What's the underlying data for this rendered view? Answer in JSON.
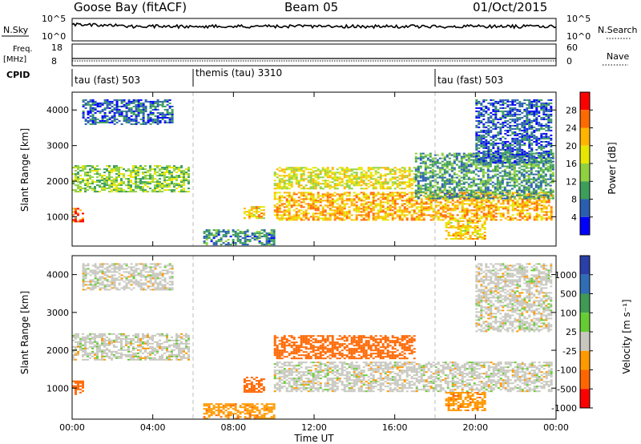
{
  "header": {
    "station": "Goose Bay (fitACF)",
    "beam": "Beam 05",
    "date": "01/Oct/2015"
  },
  "top_panels": {
    "nsky_label": "N.Sky",
    "nsky_ticks": [
      "10^5",
      "10^0"
    ],
    "nsearch_label": "N.Search",
    "nsearch_ticks": [
      "10^5",
      "10^0"
    ],
    "freq_label_line1": "Freq.",
    "freq_label_line2": "[MHz]",
    "freq_ticks": [
      "18",
      "8"
    ],
    "nave_label": "Nave",
    "nave_ticks": [
      "60",
      "0"
    ],
    "cpid_label": "CPID",
    "cpid_segments": [
      {
        "label": "tau (fast) 503",
        "start_hour": 0
      },
      {
        "label": "themis (tau) 3310",
        "start_hour": 6
      },
      {
        "label": "tau (fast) 503",
        "start_hour": 18
      }
    ]
  },
  "chart_data": [
    {
      "type": "heatmap",
      "panel": "power",
      "ylabel": "Slant Range [km]",
      "yticks": [
        "4000",
        "3000",
        "2000",
        "1000"
      ],
      "ylim": [
        180,
        4500
      ],
      "xlim": [
        0,
        24
      ],
      "colorbar_label": "Power [dB]",
      "colorbar_ticks": [
        "28",
        "24",
        "20",
        "16",
        "12",
        "8",
        "4"
      ],
      "colorbar_colors": [
        "#ff0000",
        "#ff6a00",
        "#ffb400",
        "#e6e600",
        "#8fd13f",
        "#3c9e5a",
        "#2a5fb0",
        "#0000ff"
      ],
      "regions": [
        {
          "t0": 0.0,
          "t1": 5.8,
          "r0": 1700,
          "r1": 2450,
          "value": 14
        },
        {
          "t0": 0.0,
          "t1": 0.5,
          "r0": 850,
          "r1": 1250,
          "value": 26
        },
        {
          "t0": 0.5,
          "t1": 5.0,
          "r0": 3600,
          "r1": 4300,
          "value": 6
        },
        {
          "t0": 6.5,
          "t1": 10.0,
          "r0": 200,
          "r1": 650,
          "value": 8
        },
        {
          "t0": 8.5,
          "t1": 9.5,
          "r0": 950,
          "r1": 1300,
          "value": 20
        },
        {
          "t0": 10.0,
          "t1": 23.8,
          "r0": 900,
          "r1": 1700,
          "value": 22
        },
        {
          "t0": 10.0,
          "t1": 17.0,
          "r0": 1800,
          "r1": 2400,
          "value": 18
        },
        {
          "t0": 17.0,
          "t1": 23.8,
          "r0": 1500,
          "r1": 2800,
          "value": 10
        },
        {
          "t0": 18.5,
          "t1": 20.5,
          "r0": 400,
          "r1": 900,
          "value": 20
        },
        {
          "t0": 20.0,
          "t1": 23.8,
          "r0": 2500,
          "r1": 4300,
          "value": 6
        }
      ]
    },
    {
      "type": "heatmap",
      "panel": "velocity",
      "ylabel": "Slant Range [km]",
      "yticks": [
        "4000",
        "3000",
        "2000",
        "1000"
      ],
      "ylim": [
        180,
        4500
      ],
      "xlim": [
        0,
        24
      ],
      "xlabel": "Time UT",
      "xticks": [
        "00:00",
        "04:00",
        "08:00",
        "12:00",
        "16:00",
        "20:00",
        "00:00"
      ],
      "colorbar_label": "Velocity [m s⁻¹]",
      "colorbar_ticks": [
        "1000",
        "500",
        "100",
        "25",
        "-25",
        "-100",
        "-500",
        "-1000"
      ],
      "colorbar_colors": [
        "#2a3fa8",
        "#2f6db5",
        "#3f9a55",
        "#66cc33",
        "#c8c8c0",
        "#ff9900",
        "#ff6600",
        "#ff0000"
      ],
      "regions": [
        {
          "t0": 0.0,
          "t1": 5.8,
          "r0": 1750,
          "r1": 2450,
          "value": 0
        },
        {
          "t0": 0.0,
          "t1": 0.5,
          "r0": 850,
          "r1": 1200,
          "value": -300
        },
        {
          "t0": 0.5,
          "t1": 5.0,
          "r0": 3600,
          "r1": 4300,
          "value": 0
        },
        {
          "t0": 6.5,
          "t1": 10.0,
          "r0": 200,
          "r1": 600,
          "value": -80
        },
        {
          "t0": 8.5,
          "t1": 9.5,
          "r0": 900,
          "r1": 1300,
          "value": -150
        },
        {
          "t0": 10.0,
          "t1": 23.8,
          "r0": 900,
          "r1": 1700,
          "value": 0
        },
        {
          "t0": 10.0,
          "t1": 17.0,
          "r0": 1800,
          "r1": 2400,
          "value": -300
        },
        {
          "t0": 18.5,
          "t1": 20.5,
          "r0": 400,
          "r1": 900,
          "value": -80
        },
        {
          "t0": 20.0,
          "t1": 23.8,
          "r0": 2500,
          "r1": 4300,
          "value": 0
        }
      ]
    }
  ]
}
